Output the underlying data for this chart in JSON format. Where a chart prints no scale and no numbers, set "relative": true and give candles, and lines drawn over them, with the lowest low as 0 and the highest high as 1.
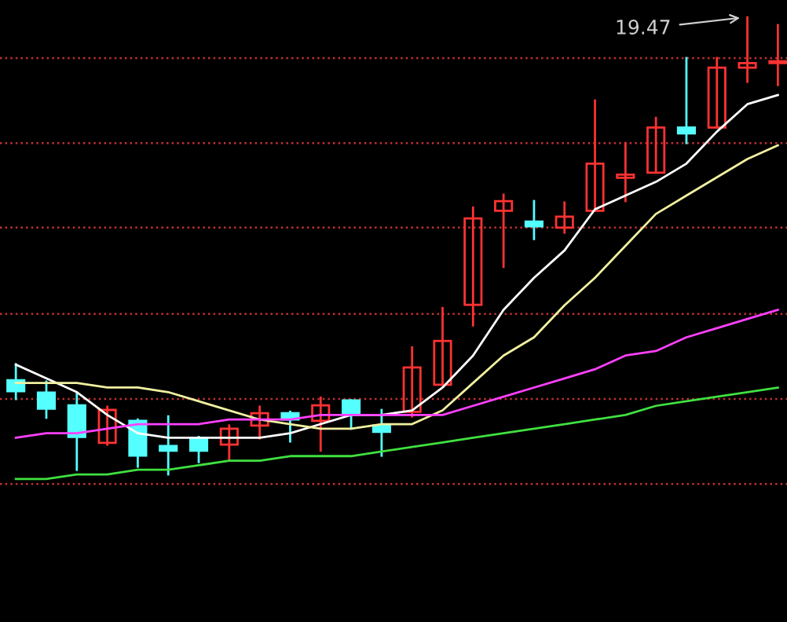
{
  "chart_data": {
    "type": "candlestick",
    "relative": true,
    "categories": [
      null,
      null,
      null,
      null,
      null,
      null,
      null,
      null,
      null,
      null,
      null,
      null,
      null,
      null,
      null,
      null,
      null,
      null,
      null,
      null,
      null,
      null,
      null,
      null,
      null,
      null
    ],
    "ohlc": [
      [
        0.206,
        0.241,
        0.165,
        0.182
      ],
      [
        0.179,
        0.203,
        0.124,
        0.144
      ],
      [
        0.151,
        0.179,
        0.01,
        0.082
      ],
      [
        0.069,
        0.148,
        0.065,
        0.141
      ],
      [
        0.117,
        0.12,
        0.017,
        0.041
      ],
      [
        0.062,
        0.127,
        0,
        0.052
      ],
      [
        0.079,
        0.082,
        0.027,
        0.052
      ],
      [
        0.065,
        0.107,
        0.031,
        0.1
      ],
      [
        0.107,
        0.148,
        0.079,
        0.134
      ],
      [
        0.134,
        0.137,
        0.072,
        0.12
      ],
      [
        0.117,
        0.168,
        0.052,
        0.151
      ],
      [
        0.162,
        0.162,
        0.1,
        0.134
      ],
      [
        0.107,
        0.141,
        0.041,
        0.093
      ],
      [
        0.137,
        0.278,
        0.127,
        0.234
      ],
      [
        0.196,
        0.364,
        0.196,
        0.292
      ],
      [
        0.371,
        0.584,
        0.326,
        0.56
      ],
      [
        0.577,
        0.612,
        0.454,
        0.598
      ],
      [
        0.553,
        0.598,
        0.515,
        0.543
      ],
      [
        0.54,
        0.595,
        0.529,
        0.564
      ],
      [
        0.577,
        0.818,
        0.577,
        0.68
      ],
      [
        0.649,
        0.725,
        0.598,
        0.656
      ],
      [
        0.66,
        0.78,
        0.66,
        0.759
      ],
      [
        0.759,
        0.911,
        0.725,
        0.746
      ],
      [
        0.759,
        0.911,
        0.759,
        0.89
      ],
      [
        0.89,
        1,
        0.859,
        0.9
      ],
      [
        0.9,
        0.983,
        0.852,
        0.904
      ]
    ],
    "colors": [
      "#54ffff",
      "#54ffff",
      "#54ffff",
      "#ff3232",
      "#54ffff",
      "#54ffff",
      "#54ffff",
      "#ff3232",
      "#ff3232",
      "#54ffff",
      "#ff3232",
      "#54ffff",
      "#54ffff",
      "#ff3232",
      "#ff3232",
      "#ff3232",
      "#ff3232",
      "#54ffff",
      "#ff3232",
      "#ff3232",
      "#ff3232",
      "#ff3232",
      "#54ffff",
      "#ff3232",
      "#ff3232",
      "#ff3232"
    ],
    "series": [
      {
        "type": "line",
        "color": "#ffffff",
        "values": [
          0.24,
          0.21,
          0.18,
          0.13,
          0.09,
          0.08,
          0.08,
          0.08,
          0.08,
          0.09,
          0.11,
          0.13,
          0.13,
          0.14,
          0.19,
          0.26,
          0.36,
          0.43,
          0.49,
          0.58,
          0.61,
          0.64,
          0.68,
          0.75,
          0.81,
          0.83
        ]
      },
      {
        "type": "line",
        "color": "#f0f0a0",
        "values": [
          0.2,
          0.2,
          0.2,
          0.19,
          0.19,
          0.18,
          0.16,
          0.14,
          0.12,
          0.11,
          0.1,
          0.1,
          0.11,
          0.11,
          0.14,
          0.2,
          0.26,
          0.3,
          0.37,
          0.43,
          0.5,
          0.57,
          0.61,
          0.65,
          0.69,
          0.72
        ]
      },
      {
        "type": "line",
        "color": "#ff40ff",
        "values": [
          0.08,
          0.09,
          0.09,
          0.1,
          0.11,
          0.11,
          0.11,
          0.12,
          0.12,
          0.12,
          0.13,
          0.13,
          0.13,
          0.13,
          0.13,
          0.15,
          0.17,
          0.19,
          0.21,
          0.23,
          0.26,
          0.27,
          0.3,
          0.32,
          0.34,
          0.36
        ]
      },
      {
        "type": "line",
        "color": "#40e040",
        "values": [
          -0.01,
          -0.01,
          0,
          0,
          0.01,
          0.01,
          0.02,
          0.03,
          0.03,
          0.04,
          0.04,
          0.04,
          0.05,
          0.06,
          0.07,
          0.08,
          0.09,
          0.1,
          0.11,
          0.12,
          0.13,
          0.15,
          0.16,
          0.17,
          0.18,
          0.19
        ]
      }
    ],
    "ref_lines": [
      {
        "axis": "y",
        "value": 0.911,
        "color": "#c03030",
        "line_style": "dotted"
      },
      {
        "axis": "y",
        "value": 0.725,
        "color": "#c03030",
        "line_style": "dotted"
      },
      {
        "axis": "y",
        "value": 0.54,
        "color": "#c03030",
        "line_style": "dotted"
      },
      {
        "axis": "y",
        "value": 0.351,
        "color": "#c03030",
        "line_style": "dotted"
      },
      {
        "axis": "y",
        "value": 0.165,
        "color": "#c03030",
        "line_style": "dotted"
      },
      {
        "axis": "y",
        "value": -0.021,
        "color": "#c03030",
        "line_style": "dotted"
      }
    ],
    "annotations": [
      "19.47"
    ]
  }
}
